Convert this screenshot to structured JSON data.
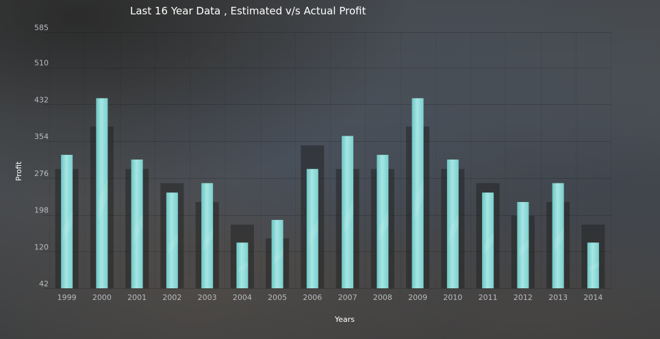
{
  "chart_data": {
    "type": "bar",
    "title": "Last 16 Year Data , Estimated v/s Actual Profit",
    "xlabel": "Years",
    "ylabel": "Profit",
    "ylim": [
      42,
      585
    ],
    "yticks": [
      42,
      120,
      198,
      276,
      354,
      432,
      510,
      585
    ],
    "categories": [
      "1999",
      "2000",
      "2001",
      "2002",
      "2003",
      "2004",
      "2005",
      "2006",
      "2007",
      "2008",
      "2009",
      "2010",
      "2011",
      "2012",
      "2013",
      "2014"
    ],
    "series": [
      {
        "role": "estimated",
        "color": "#2a2a2a",
        "values": [
          295,
          385,
          295,
          265,
          225,
          177,
          148,
          345,
          295,
          295,
          385,
          295,
          265,
          196,
          225,
          177
        ]
      },
      {
        "role": "actual",
        "color": "#8ad9d7",
        "values": [
          325,
          445,
          315,
          245,
          265,
          139,
          187,
          295,
          365,
          325,
          445,
          315,
          245,
          225,
          265,
          139
        ]
      }
    ],
    "grid": true,
    "legend": "none"
  }
}
